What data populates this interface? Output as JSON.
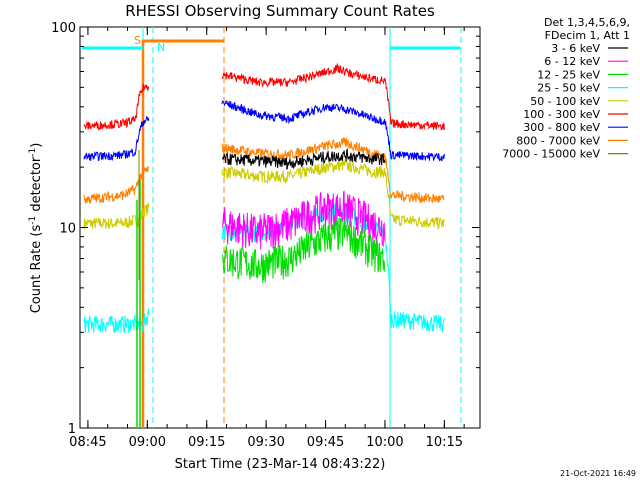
{
  "chart_data": {
    "type": "line",
    "title": "RHESSI Observing Summary Count Rates",
    "xlabel": "Start Time (23-Mar-14 08:43:22)",
    "ylabel_main": "Count Rate (s",
    "ylabel_sup": "-1",
    "ylabel_rest": " detector",
    "ylabel_sup2": "-1",
    "ylabel_end": ")",
    "x_min_minutes": 523,
    "x_max_minutes": 624,
    "ylim": [
      1,
      100
    ],
    "log_y": true,
    "x_ticks": [
      {
        "minutes": 525,
        "label": "08:45"
      },
      {
        "minutes": 540,
        "label": "09:00"
      },
      {
        "minutes": 555,
        "label": "09:15"
      },
      {
        "minutes": 570,
        "label": "09:30"
      },
      {
        "minutes": 585,
        "label": "09:45"
      },
      {
        "minutes": 600,
        "label": "10:00"
      },
      {
        "minutes": 615,
        "label": "10:15"
      }
    ],
    "y_ticks": [
      {
        "value": 1,
        "label": "1"
      },
      {
        "value": 10,
        "label": "10"
      },
      {
        "value": 100,
        "label": "100"
      }
    ],
    "legend_header": [
      "Det 1,3,4,5,6,9,",
      "FDecim 1, Att 1"
    ],
    "legend_position": "right",
    "series": [
      {
        "name": "3 - 6 keV",
        "color": "#000000",
        "noise": 0.07,
        "points": [
          [
            559,
            22.0
          ],
          [
            568,
            21.5
          ],
          [
            576,
            21.0
          ],
          [
            585,
            22.5
          ],
          [
            590,
            23.0
          ],
          [
            597,
            22.0
          ],
          [
            600,
            22.0
          ]
        ]
      },
      {
        "name": "6 - 12 keV",
        "color": "#ff00ff",
        "noise": 0.22,
        "points": [
          [
            559,
            10.5
          ],
          [
            568,
            9.5
          ],
          [
            576,
            10.5
          ],
          [
            585,
            12.5
          ],
          [
            590,
            12.5
          ],
          [
            597,
            10.5
          ],
          [
            600,
            10.0
          ]
        ]
      },
      {
        "name": "12 - 25 keV",
        "color": "#00dd00",
        "noise": 0.2,
        "points": [
          [
            559,
            7.0
          ],
          [
            568,
            6.5
          ],
          [
            576,
            7.0
          ],
          [
            585,
            9.0
          ],
          [
            590,
            9.5
          ],
          [
            597,
            7.5
          ],
          [
            600,
            7.0
          ]
        ]
      },
      {
        "name": "25 - 50 keV",
        "color": "#00ffff",
        "noise": 0.1,
        "points": [
          [
            524,
            3.3
          ],
          [
            537,
            3.3
          ],
          [
            539,
            3.3
          ],
          [
            559,
            9.6
          ],
          [
            568,
            9.3
          ],
          [
            576,
            10.5
          ],
          [
            585,
            12.0
          ],
          [
            590,
            12.0
          ],
          [
            597,
            10.0
          ],
          [
            600,
            9.3
          ],
          [
            601.5,
            3.5
          ],
          [
            615,
            3.3
          ]
        ]
      },
      {
        "name": "50 - 100 keV",
        "color": "#cccc00",
        "noise": 0.07,
        "points": [
          [
            524,
            10.5
          ],
          [
            534,
            10.5
          ],
          [
            538,
            11.0
          ],
          [
            539,
            12.0
          ],
          [
            559,
            19.0
          ],
          [
            568,
            18.0
          ],
          [
            576,
            18.0
          ],
          [
            585,
            20.0
          ],
          [
            590,
            20.5
          ],
          [
            597,
            19.0
          ],
          [
            600,
            19.0
          ],
          [
            601.5,
            11.0
          ],
          [
            615,
            10.5
          ]
        ]
      },
      {
        "name": "100 - 300 keV",
        "color": "#ff0000",
        "noise": 0.05,
        "points": [
          [
            524,
            32.0
          ],
          [
            534,
            33.0
          ],
          [
            537,
            34.5
          ],
          [
            538,
            45.0
          ],
          [
            539,
            50.0
          ],
          [
            559,
            58.0
          ],
          [
            568,
            53.0
          ],
          [
            576,
            53.0
          ],
          [
            583,
            58.0
          ],
          [
            588,
            62.0
          ],
          [
            592,
            58.0
          ],
          [
            597,
            55.0
          ],
          [
            600,
            54.0
          ],
          [
            601.5,
            33.0
          ],
          [
            615,
            32.0
          ]
        ]
      },
      {
        "name": "300 - 800 keV",
        "color": "#0000ff",
        "noise": 0.05,
        "points": [
          [
            524,
            22.5
          ],
          [
            534,
            23.0
          ],
          [
            537,
            24.0
          ],
          [
            538,
            30.0
          ],
          [
            539,
            34.0
          ],
          [
            559,
            42.0
          ],
          [
            568,
            36.5
          ],
          [
            576,
            35.0
          ],
          [
            585,
            40.0
          ],
          [
            590,
            39.0
          ],
          [
            597,
            35.0
          ],
          [
            600,
            34.0
          ],
          [
            601.5,
            23.0
          ],
          [
            615,
            22.5
          ]
        ]
      },
      {
        "name": "800 - 7000 keV",
        "color": "#ff8000",
        "noise": 0.06,
        "points": [
          [
            524,
            13.8
          ],
          [
            534,
            14.5
          ],
          [
            537,
            15.5
          ],
          [
            538,
            17.5
          ],
          [
            539,
            19.0
          ],
          [
            559,
            25.0
          ],
          [
            568,
            23.5
          ],
          [
            576,
            23.0
          ],
          [
            585,
            25.5
          ],
          [
            590,
            26.5
          ],
          [
            597,
            23.5
          ],
          [
            600,
            22.5
          ],
          [
            601.5,
            14.5
          ],
          [
            615,
            13.8
          ]
        ]
      },
      {
        "name": "7000 - 15000 keV",
        "color": "#808000",
        "noise": 0.0,
        "points": []
      }
    ],
    "markers": [
      {
        "label": "S",
        "color": "#ff8000",
        "minute": 540,
        "bar_start": 540,
        "bar_end": 559
      },
      {
        "label": "N",
        "color": "#00ffff",
        "minute": 542,
        "bar_start": 523.5,
        "bar_end": 540
      }
    ],
    "footer_date": "21-Oct-2021 16:49"
  }
}
